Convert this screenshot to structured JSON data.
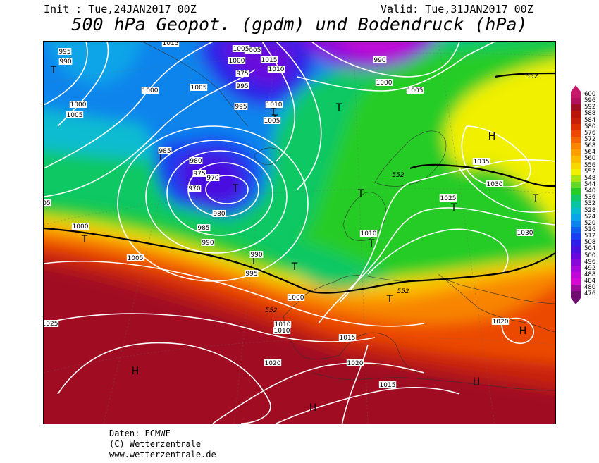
{
  "header": {
    "init": "Init : Tue,24JAN2017 00Z",
    "valid": "Valid: Tue,31JAN2017 00Z",
    "title": "500 hPa Geopot. (gpdm) und Bodendruck (hPa)"
  },
  "legend": [
    {
      "v": "600",
      "c": "#c8186a"
    },
    {
      "v": "596",
      "c": "#b0105c"
    },
    {
      "v": "592",
      "c": "#a00e24"
    },
    {
      "v": "588",
      "c": "#b8160c"
    },
    {
      "v": "584",
      "c": "#c82008"
    },
    {
      "v": "580",
      "c": "#dc3000"
    },
    {
      "v": "576",
      "c": "#ec4800"
    },
    {
      "v": "572",
      "c": "#f46400"
    },
    {
      "v": "568",
      "c": "#f88400"
    },
    {
      "v": "564",
      "c": "#fca000"
    },
    {
      "v": "560",
      "c": "#fcbc00"
    },
    {
      "v": "556",
      "c": "#f8d800"
    },
    {
      "v": "552",
      "c": "#f0f000"
    },
    {
      "v": "548",
      "c": "#a8e414"
    },
    {
      "v": "544",
      "c": "#64d828"
    },
    {
      "v": "540",
      "c": "#28cc28"
    },
    {
      "v": "536",
      "c": "#10c864"
    },
    {
      "v": "532",
      "c": "#08c4a0"
    },
    {
      "v": "528",
      "c": "#08bcd0"
    },
    {
      "v": "524",
      "c": "#0aa4e8"
    },
    {
      "v": "520",
      "c": "#0c84ec"
    },
    {
      "v": "516",
      "c": "#1060f0"
    },
    {
      "v": "512",
      "c": "#1840f0"
    },
    {
      "v": "508",
      "c": "#2c20e8"
    },
    {
      "v": "504",
      "c": "#4810e0"
    },
    {
      "v": "500",
      "c": "#6808dc"
    },
    {
      "v": "496",
      "c": "#8808dc"
    },
    {
      "v": "492",
      "c": "#a808dc"
    },
    {
      "v": "488",
      "c": "#c008d8"
    },
    {
      "v": "484",
      "c": "#d808d4"
    },
    {
      "v": "480",
      "c": "#9c0c9c"
    },
    {
      "v": "476",
      "c": "#700c70"
    }
  ],
  "centers": [
    {
      "t": "T"
    },
    {
      "t": "T"
    },
    {
      "t": "T"
    },
    {
      "t": "T"
    },
    {
      "t": "T"
    },
    {
      "t": "T"
    },
    {
      "t": "T"
    },
    {
      "t": "T"
    },
    {
      "t": "T"
    },
    {
      "t": "T"
    },
    {
      "t": "T"
    },
    {
      "t": "T"
    },
    {
      "t": "T"
    },
    {
      "t": "T"
    },
    {
      "t": "H"
    },
    {
      "t": "H"
    },
    {
      "t": "H"
    },
    {
      "t": "H"
    },
    {
      "t": "H"
    }
  ],
  "isobar_labels": [
    "995",
    "990",
    "1015",
    "1005",
    "1000",
    "1005",
    "1000",
    "1005",
    "1005",
    "1000",
    "975",
    "995",
    "1010",
    "1015",
    "990",
    "1000",
    "1005",
    "995",
    "1010",
    "1005",
    "985",
    "980",
    "975",
    "970",
    "970",
    "980",
    "985",
    "990",
    "1000",
    "1005",
    "990",
    "995",
    "1010",
    "1015",
    "1020",
    "1010",
    "1025",
    "1030",
    "1035",
    "1030",
    "1010",
    "1025",
    "1020",
    "1015",
    "1020",
    "1025",
    "1000",
    "05"
  ],
  "geopot_labels": [
    "552",
    "552",
    "552",
    "552",
    "552"
  ],
  "footer": {
    "line1": "Daten: ECMWF",
    "line2": "(C) Wetterzentrale",
    "line3": "www.wetterzentrale.de"
  }
}
